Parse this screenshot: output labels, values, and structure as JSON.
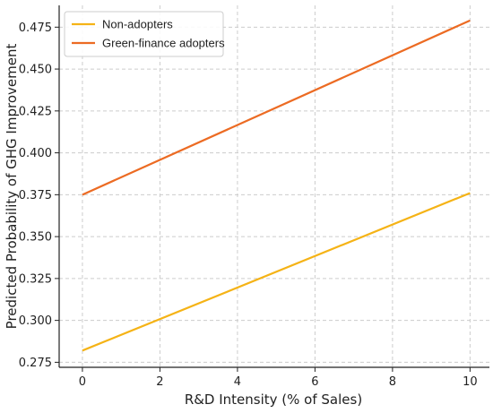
{
  "chart_data": {
    "type": "line",
    "title": "",
    "xlabel": "R&D Intensity (% of Sales)",
    "ylabel": "Predicted Probability of GHG Improvement",
    "xlim": [
      -0.6,
      10.5
    ],
    "ylim": [
      0.272,
      0.488
    ],
    "xticks": [
      0,
      2,
      4,
      6,
      8,
      10
    ],
    "yticks": [
      0.275,
      0.3,
      0.325,
      0.35,
      0.375,
      0.4,
      0.425,
      0.45,
      0.475
    ],
    "grid": true,
    "legend_position": "top-left",
    "series": [
      {
        "name": "Non-adopters",
        "color": "#f5b316",
        "x": [
          0,
          10
        ],
        "y": [
          0.282,
          0.376
        ]
      },
      {
        "name": "Green-finance adopters",
        "color": "#ec6b23",
        "x": [
          0,
          10
        ],
        "y": [
          0.375,
          0.479
        ]
      }
    ]
  }
}
